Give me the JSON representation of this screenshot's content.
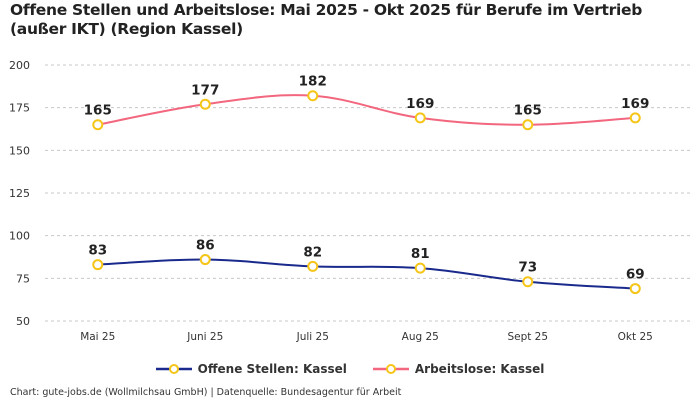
{
  "chart_data": {
    "type": "line",
    "title": "Offene Stellen und Arbeitslose: Mai 2025 - Okt 2025 für Berufe im Vertrieb (außer IKT) (Region Kassel)",
    "categories": [
      "Mai 25",
      "Juni 25",
      "Juli 25",
      "Aug 25",
      "Sept 25",
      "Okt 25"
    ],
    "ylim": [
      50,
      200
    ],
    "yticks": [
      50,
      75,
      100,
      125,
      150,
      175,
      200
    ],
    "grid": true,
    "legend_position": "bottom",
    "series": [
      {
        "name": "Offene Stellen: Kassel",
        "color": "#1a2a8c",
        "values": [
          83,
          86,
          82,
          81,
          73,
          69
        ]
      },
      {
        "name": "Arbeitslose: Kassel",
        "color": "#f2677e",
        "values": [
          165,
          177,
          182,
          169,
          165,
          169
        ]
      }
    ],
    "marker_color": "#f5c518"
  },
  "footer": "Chart: gute-jobs.de (Wollmilchsau GmbH) | Datenquelle: Bundesagentur für Arbeit"
}
